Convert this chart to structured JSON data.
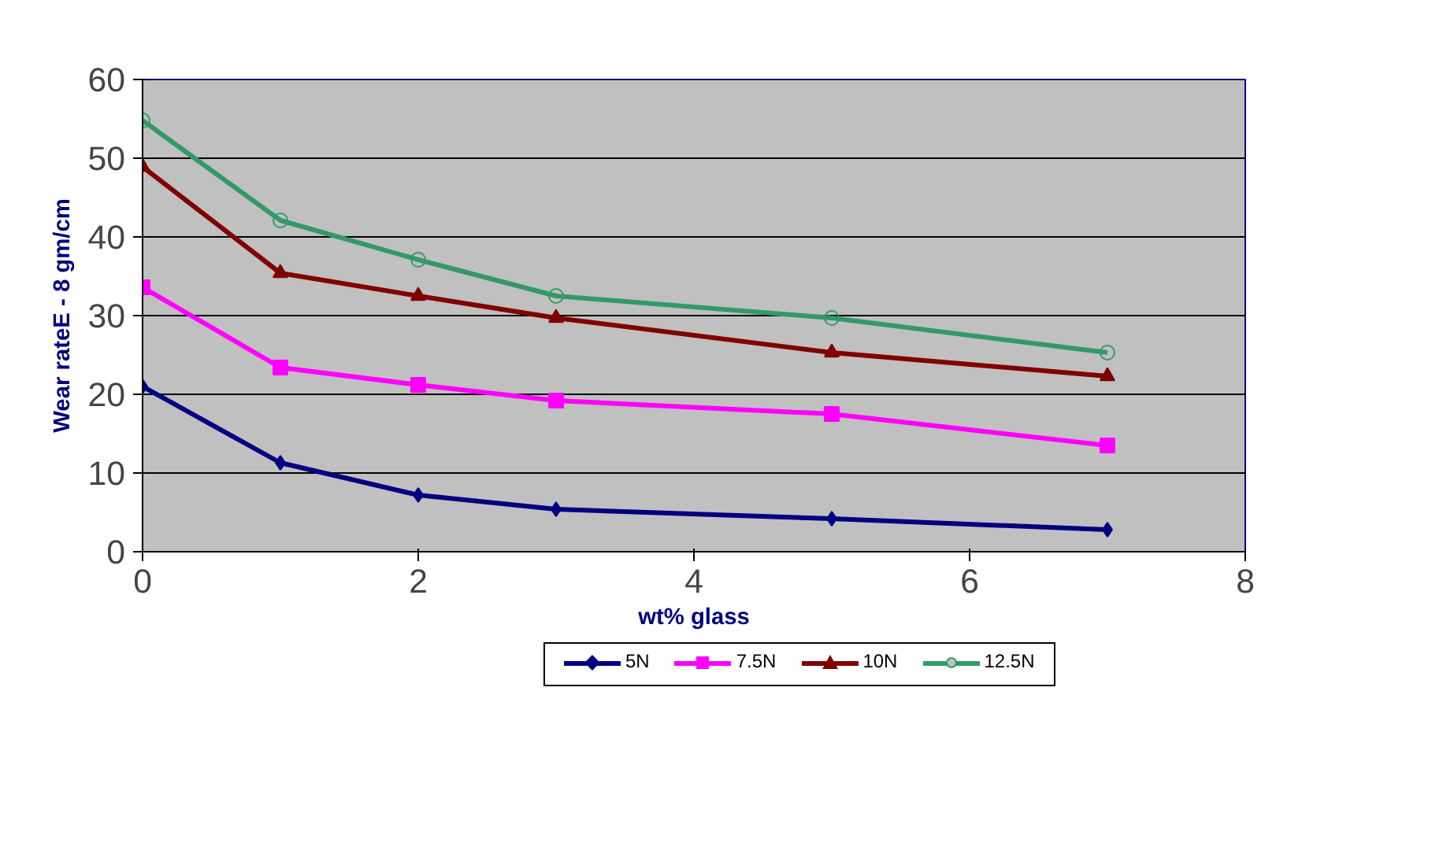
{
  "chart_data": {
    "type": "line",
    "xlabel": "wt% glass",
    "ylabel": "Wear rateE - 8 gm/cm",
    "x": [
      0,
      1,
      2,
      3,
      5,
      7
    ],
    "series": [
      {
        "name": "5N",
        "color": "#000080",
        "marker": "diamond",
        "values": [
          21.0,
          11.3,
          7.2,
          5.4,
          4.2,
          2.8
        ]
      },
      {
        "name": "7.5N",
        "color": "#ff00ff",
        "marker": "square",
        "values": [
          33.6,
          23.4,
          21.2,
          19.2,
          17.5,
          13.5
        ]
      },
      {
        "name": "10N",
        "color": "#800000",
        "marker": "triangle",
        "values": [
          48.9,
          35.4,
          32.5,
          29.7,
          25.3,
          22.3
        ]
      },
      {
        "name": "12.5N",
        "color": "#339966",
        "marker": "circle",
        "values": [
          54.8,
          42.1,
          37.1,
          32.5,
          29.7,
          25.3
        ]
      }
    ],
    "xlim": [
      0,
      8
    ],
    "xticks": [
      0,
      2,
      4,
      6,
      8
    ],
    "ylim": [
      0,
      60
    ],
    "yticks": [
      0,
      10,
      20,
      30,
      40,
      50,
      60
    ],
    "grid": "y",
    "legend": "bottom",
    "line_style": "solid"
  }
}
